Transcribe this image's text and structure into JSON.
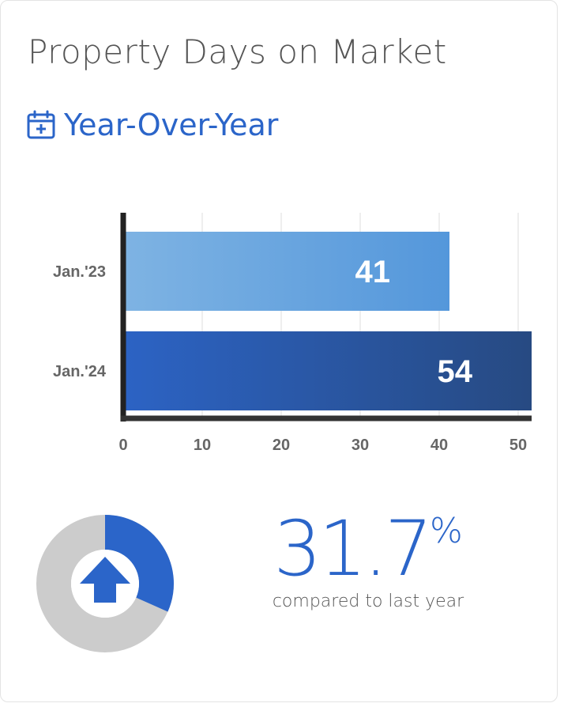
{
  "header": {
    "title": "Property Days on Market",
    "subtitle": "Year-Over-Year",
    "subtitle_icon": "calendar-plus-icon"
  },
  "colors": {
    "accent": "#2b65c9",
    "bar_2023_start": "#7eb3e3",
    "bar_2023_end": "#5497db",
    "bar_2024_start": "#2c63c4",
    "bar_2024_end": "#274a82",
    "donut_track": "#cccccc"
  },
  "chart_data": {
    "type": "bar",
    "orientation": "horizontal",
    "categories": [
      "Jan.'23",
      "Jan.'24"
    ],
    "values": [
      41,
      54
    ],
    "value_labels": [
      "41",
      "54"
    ],
    "xlim": [
      0,
      52
    ],
    "xticks": [
      0,
      10,
      20,
      30,
      40,
      50
    ],
    "grid": true
  },
  "summary": {
    "percent_value": "31.7",
    "percent_sign": "%",
    "caption": "compared to last year",
    "donut_fraction": 0.317,
    "direction_icon": "arrow-up-icon"
  }
}
